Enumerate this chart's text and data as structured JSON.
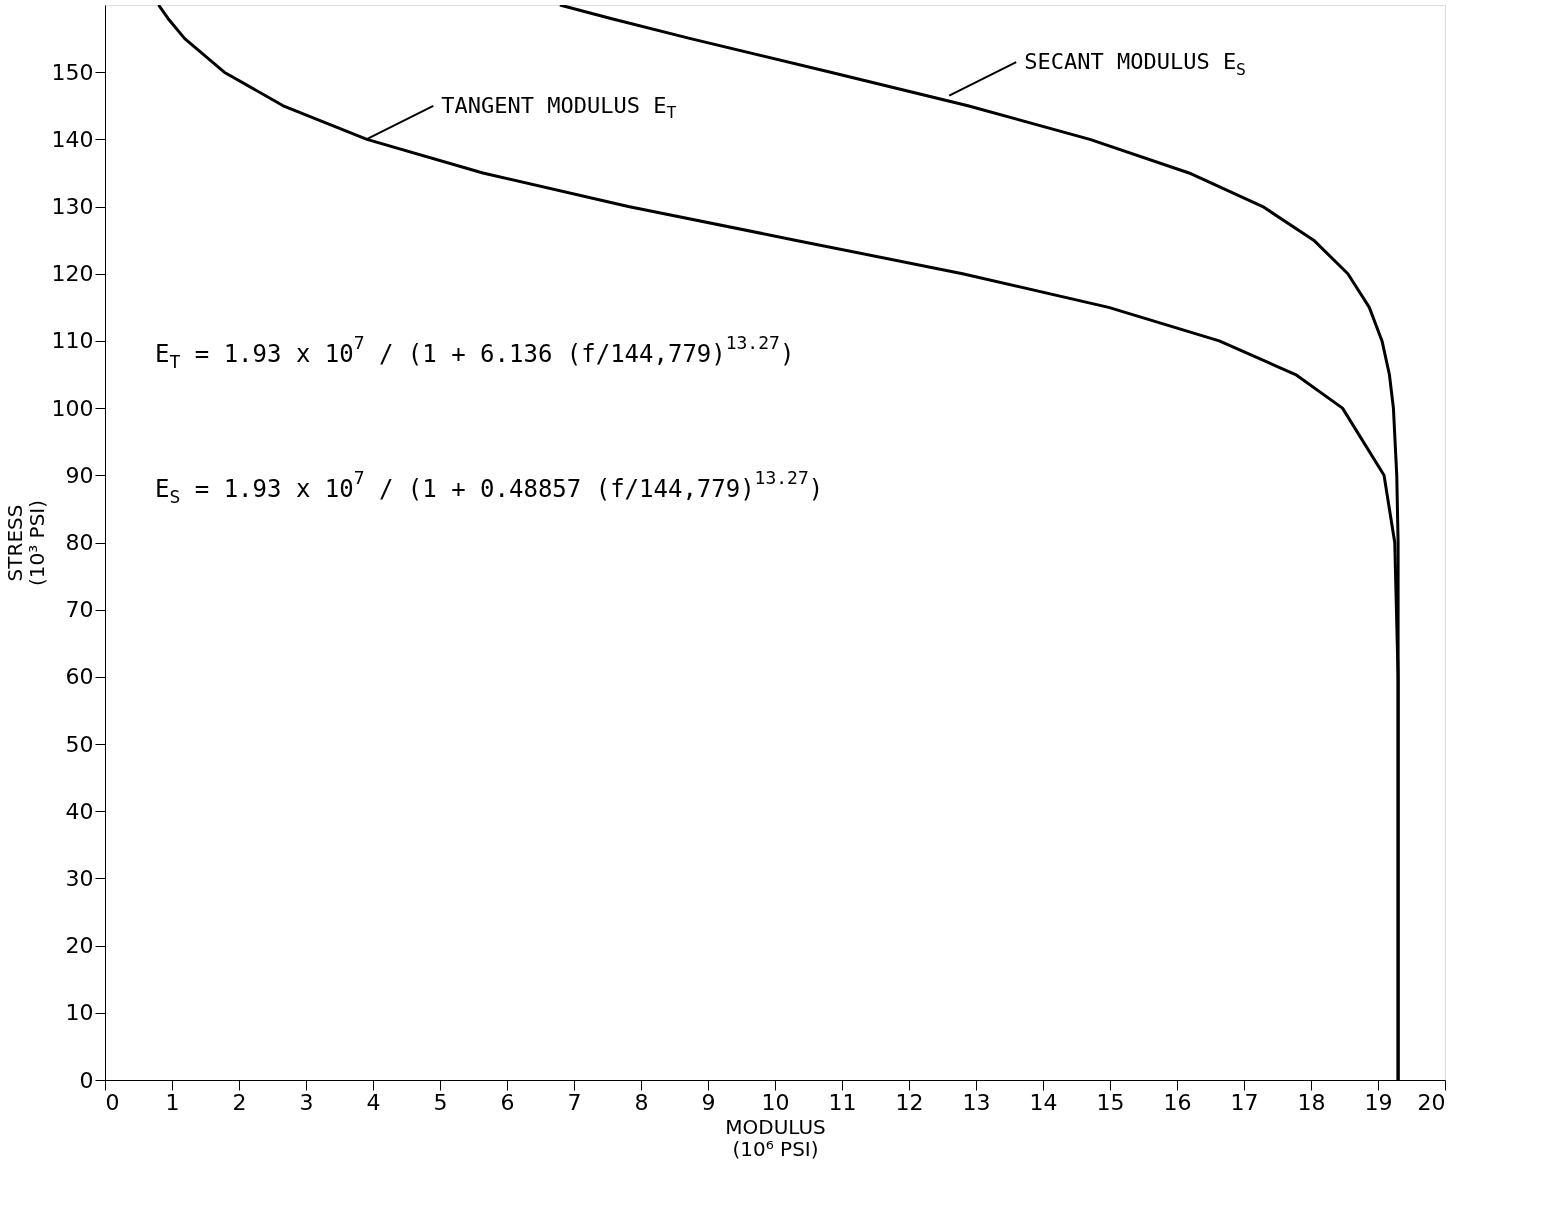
{
  "chart_data": {
    "type": "line",
    "xlabel": "MODULUS\n(10⁶ PSI)",
    "ylabel": "STRESS\n(10³ PSI)",
    "xlim": [
      0,
      20
    ],
    "xticks": [
      0,
      1,
      2,
      3,
      4,
      5,
      6,
      7,
      8,
      9,
      10,
      11,
      12,
      13,
      14,
      15,
      16,
      17,
      18,
      19,
      20
    ],
    "ylim": [
      0,
      160
    ],
    "yticks": [
      0,
      10,
      20,
      30,
      40,
      50,
      60,
      70,
      80,
      90,
      100,
      110,
      120,
      130,
      140,
      150
    ],
    "grid": false,
    "marker": "none",
    "line_style": "solid",
    "series": [
      {
        "color": "#000000",
        "x": [
          19.3,
          19.3,
          19.3,
          19.25,
          19.09,
          18.47,
          17.77,
          16.63,
          14.98,
          12.8,
          10.3,
          7.81,
          5.64,
          3.91,
          2.66,
          1.78,
          1.19,
          0.94,
          0.8
        ],
        "values": [
          0,
          40,
          60,
          80,
          90,
          100,
          105,
          110,
          115,
          120,
          125,
          130,
          135,
          140,
          145,
          150,
          155,
          158,
          160
        ]
      },
      {
        "color": "#000000",
        "x": [
          19.3,
          19.3,
          19.3,
          19.3,
          19.28,
          19.23,
          19.17,
          19.06,
          18.87,
          18.55,
          18.04,
          17.28,
          16.18,
          14.7,
          12.88,
          10.83,
          8.74,
          7.55,
          6.79
        ],
        "values": [
          0,
          40,
          60,
          80,
          90,
          100,
          105,
          110,
          115,
          120,
          125,
          130,
          135,
          140,
          145,
          150,
          155,
          158,
          160
        ]
      }
    ],
    "annotations": [
      {
        "text": "TANGENT MODULUS E$_{T}$",
        "x": 3.9,
        "y": 140
      },
      {
        "text": "SECANT MODULUS E$_{S}$",
        "x": 12.6,
        "y": 146.5
      },
      "E$_{T}$ = 1.93 x 10$^{7}$ / (1 + 6.136 (f/144,779)$^{13.27}$)",
      "E$_{S}$ = 1.93 x 10$^{7}$ / (1 + 0.48857 (f/144,779)$^{13.27}$)"
    ]
  }
}
